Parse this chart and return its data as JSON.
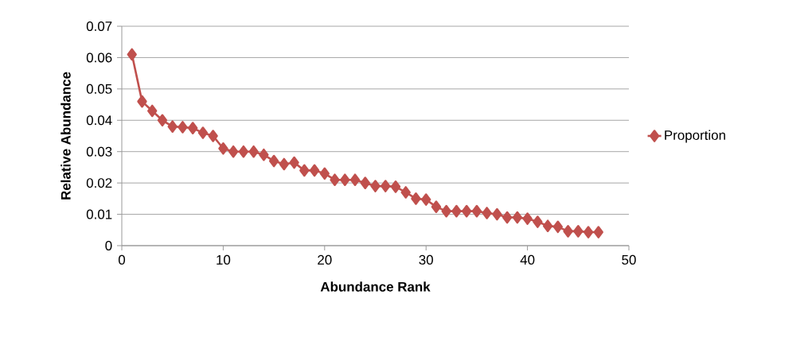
{
  "chart_data": {
    "type": "line",
    "xlabel": "Abundance Rank",
    "ylabel": "Relative Abundance",
    "x": [
      1,
      2,
      3,
      4,
      5,
      6,
      7,
      8,
      9,
      10,
      11,
      12,
      13,
      14,
      15,
      16,
      17,
      18,
      19,
      20,
      21,
      22,
      23,
      24,
      25,
      26,
      27,
      28,
      29,
      30,
      31,
      32,
      33,
      34,
      35,
      36,
      37,
      38,
      39,
      40,
      41,
      42,
      43,
      44,
      45,
      46,
      47
    ],
    "series": [
      {
        "name": "Proportion",
        "color": "#c0504d",
        "values": [
          0.061,
          0.046,
          0.043,
          0.04,
          0.038,
          0.0378,
          0.0375,
          0.036,
          0.035,
          0.031,
          0.03,
          0.03,
          0.03,
          0.029,
          0.027,
          0.026,
          0.0265,
          0.024,
          0.024,
          0.023,
          0.021,
          0.021,
          0.021,
          0.02,
          0.019,
          0.019,
          0.0188,
          0.017,
          0.015,
          0.0147,
          0.0124,
          0.011,
          0.011,
          0.011,
          0.011,
          0.0104,
          0.01,
          0.009,
          0.009,
          0.0086,
          0.0076,
          0.0063,
          0.006,
          0.0046,
          0.0046,
          0.0043,
          0.0043
        ]
      }
    ],
    "xlim": [
      0,
      50
    ],
    "xticks": [
      0,
      10,
      20,
      30,
      40,
      50
    ],
    "ylim": [
      0,
      0.07
    ],
    "yticks": [
      0,
      0.01,
      0.02,
      0.03,
      0.04,
      0.05,
      0.06,
      0.07
    ],
    "grid": "y",
    "legend": "right",
    "marker": "diamond",
    "line_style": "solid"
  }
}
